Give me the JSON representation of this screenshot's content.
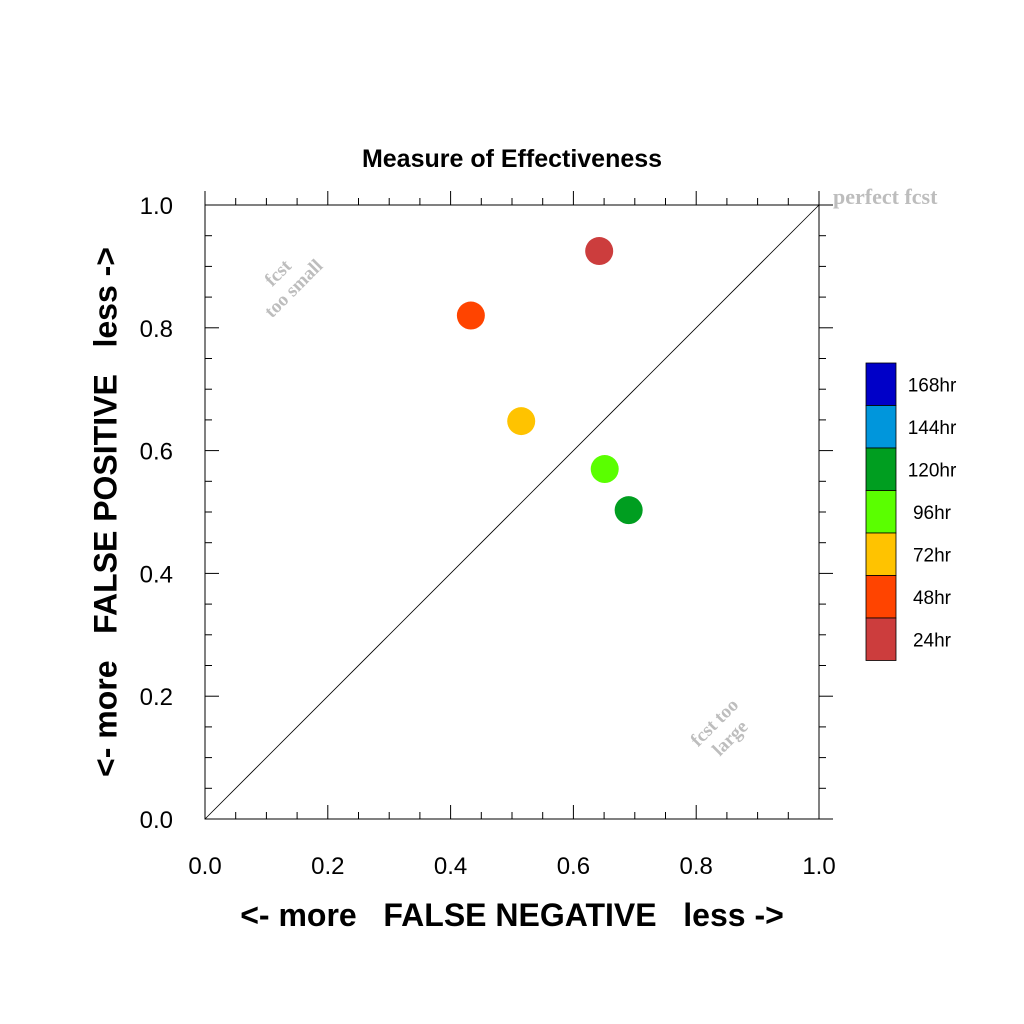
{
  "chart_data": {
    "type": "scatter",
    "title": "Measure of Effectiveness",
    "xlabel": "<- more   FALSE NEGATIVE   less ->",
    "ylabel": "<- more   FALSE POSITIVE   less ->",
    "xlim": [
      0.0,
      1.0
    ],
    "ylim": [
      0.0,
      1.0
    ],
    "x_ticks": [
      "0.0",
      "0.2",
      "0.4",
      "0.6",
      "0.8",
      "1.0"
    ],
    "y_ticks": [
      "0.0",
      "0.2",
      "0.4",
      "0.6",
      "0.8",
      "1.0"
    ],
    "grid": false,
    "reference_line": {
      "from": [
        0.0,
        0.0
      ],
      "to": [
        1.0,
        1.0
      ]
    },
    "annotations": {
      "perfect": "perfect fcst",
      "too_small_line1": "fcst",
      "too_small_line2": "too small",
      "too_large_line1": "fcst too",
      "too_large_line2": "large"
    },
    "series": [
      {
        "name": "24hr",
        "x": 0.642,
        "y": 0.925,
        "color": "#cc3d3d"
      },
      {
        "name": "48hr",
        "x": 0.433,
        "y": 0.82,
        "color": "#ff4400"
      },
      {
        "name": "72hr",
        "x": 0.515,
        "y": 0.648,
        "color": "#ffc300"
      },
      {
        "name": "96hr",
        "x": 0.651,
        "y": 0.57,
        "color": "#5aff00"
      },
      {
        "name": "120hr",
        "x": 0.69,
        "y": 0.503,
        "color": "#009e20"
      }
    ],
    "legend": {
      "placement": "right",
      "entries": [
        {
          "label": "168hr",
          "color": "#0000c8"
        },
        {
          "label": "144hr",
          "color": "#0096dc"
        },
        {
          "label": "120hr",
          "color": "#009e20"
        },
        {
          "label": "96hr",
          "color": "#5aff00"
        },
        {
          "label": "72hr",
          "color": "#ffc300"
        },
        {
          "label": "48hr",
          "color": "#ff4400"
        },
        {
          "label": "24hr",
          "color": "#cc3d3d"
        }
      ]
    }
  }
}
